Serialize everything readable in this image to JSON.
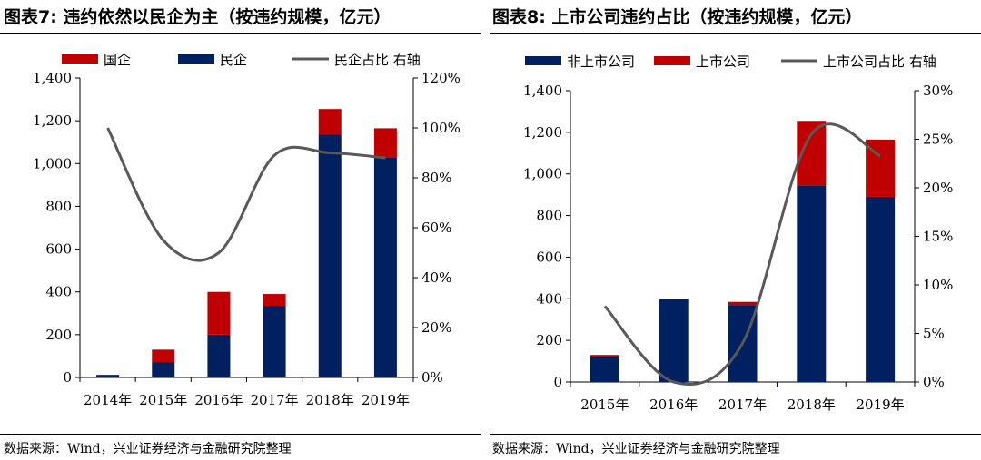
{
  "left": {
    "figure_title": "图表7: 违约依然以民企为主（按违约规模，亿元）",
    "source": "数据来源：Wind，兴业证券经济与金融研究院整理"
  },
  "right": {
    "figure_title": "图表8: 上市公司违约占比（按违约规模，亿元）",
    "source": "数据来源：Wind，兴业证券经济与金融研究院整理"
  },
  "colors": {
    "navy": "#002060",
    "red": "#c00000",
    "line": "#595959"
  },
  "chart_data": [
    {
      "type": "bar",
      "stacked": true,
      "title": "",
      "categories": [
        "2014年",
        "2015年",
        "2016年",
        "2017年",
        "2018年",
        "2019年"
      ],
      "series": [
        {
          "name": "民企",
          "kind": "bar",
          "color": "#002060",
          "values": [
            12,
            70,
            200,
            335,
            1135,
            1030
          ]
        },
        {
          "name": "国企",
          "kind": "bar",
          "color": "#c00000",
          "values": [
            0,
            60,
            200,
            55,
            120,
            135
          ]
        },
        {
          "name": "民企占比 右轴",
          "kind": "line",
          "axis": "right",
          "color": "#595959",
          "values": [
            100,
            55,
            50,
            89,
            90,
            88
          ]
        }
      ],
      "legend_order": [
        "国企",
        "民企",
        "民企占比 右轴"
      ],
      "legend_position": "top",
      "ylim": [
        0,
        1400
      ],
      "yticks": [
        0,
        200,
        400,
        600,
        800,
        1000,
        1200,
        1400
      ],
      "ytick_labels": [
        "0",
        "200",
        "400",
        "600",
        "800",
        "1,000",
        "1,200",
        "1,400"
      ],
      "y2lim": [
        0,
        120
      ],
      "y2ticks": [
        0,
        20,
        40,
        60,
        80,
        100,
        120
      ],
      "y2tick_labels": [
        "0%",
        "20%",
        "40%",
        "60%",
        "80%",
        "100%",
        "120%"
      ],
      "grid": false
    },
    {
      "type": "bar",
      "stacked": true,
      "title": "",
      "categories": [
        "2015年",
        "2016年",
        "2017年",
        "2018年",
        "2019年"
      ],
      "series": [
        {
          "name": "非上市公司",
          "kind": "bar",
          "color": "#002060",
          "values": [
            120,
            400,
            370,
            945,
            890
          ]
        },
        {
          "name": "上市公司",
          "kind": "bar",
          "color": "#c00000",
          "values": [
            10,
            0,
            15,
            310,
            275
          ]
        },
        {
          "name": "上市公司占比 右轴",
          "kind": "line",
          "axis": "right",
          "color": "#595959",
          "values": [
            7.8,
            0,
            4,
            25.5,
            23.3
          ]
        }
      ],
      "legend_order": [
        "非上市公司",
        "上市公司",
        "上市公司占比 右轴"
      ],
      "legend_position": "top",
      "ylim": [
        0,
        1400
      ],
      "yticks": [
        0,
        200,
        400,
        600,
        800,
        1000,
        1200,
        1400
      ],
      "ytick_labels": [
        "0",
        "200",
        "400",
        "600",
        "800",
        "1,000",
        "1,200",
        "1,400"
      ],
      "y2lim": [
        0,
        30
      ],
      "y2ticks": [
        0,
        5,
        10,
        15,
        20,
        25,
        30
      ],
      "y2tick_labels": [
        "0%",
        "5%",
        "10%",
        "15%",
        "20%",
        "25%",
        "30%"
      ],
      "grid": false
    }
  ]
}
